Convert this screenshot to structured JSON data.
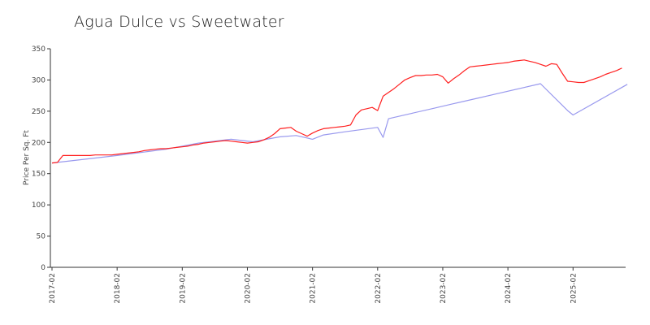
{
  "chart_data": {
    "type": "line",
    "title": "Agua Dulce vs Sweetwater",
    "xlabel": "",
    "ylabel": "Price Per Sq. Ft",
    "ylim": [
      0,
      350
    ],
    "yticks": [
      0,
      50,
      100,
      150,
      200,
      250,
      300,
      350
    ],
    "xtick_labels": [
      "2017-02",
      "2018-02",
      "2019-02",
      "2020-02",
      "2021-02",
      "2022-02",
      "2023-02",
      "2024-02",
      "2025-02"
    ],
    "x_range_months": [
      0,
      106
    ],
    "colors": {
      "red": "#ff2020",
      "blue": "#9999ee"
    },
    "series": [
      {
        "name": "Agua Dulce",
        "color": "red",
        "points": [
          [
            0,
            167
          ],
          [
            1,
            168
          ],
          [
            2,
            179
          ],
          [
            3,
            179
          ],
          [
            4,
            179
          ],
          [
            5,
            179
          ],
          [
            6,
            179
          ],
          [
            7,
            179
          ],
          [
            8,
            180
          ],
          [
            9,
            180
          ],
          [
            10,
            180
          ],
          [
            11,
            180
          ],
          [
            12,
            181
          ],
          [
            13,
            182
          ],
          [
            14,
            183
          ],
          [
            15,
            184
          ],
          [
            16,
            185
          ],
          [
            17,
            187
          ],
          [
            18,
            188
          ],
          [
            19,
            189
          ],
          [
            20,
            190
          ],
          [
            21,
            190
          ],
          [
            22,
            191
          ],
          [
            23,
            192
          ],
          [
            24,
            193
          ],
          [
            25,
            194
          ],
          [
            26,
            196
          ],
          [
            27,
            197
          ],
          [
            28,
            199
          ],
          [
            29,
            200
          ],
          [
            30,
            201
          ],
          [
            31,
            202
          ],
          [
            32,
            203
          ],
          [
            33,
            202
          ],
          [
            34,
            201
          ],
          [
            35,
            200
          ],
          [
            36,
            199
          ],
          [
            37,
            200
          ],
          [
            38,
            201
          ],
          [
            39,
            204
          ],
          [
            40,
            208
          ],
          [
            41,
            214
          ],
          [
            42,
            222
          ],
          [
            43,
            223
          ],
          [
            44,
            224
          ],
          [
            45,
            218
          ],
          [
            46,
            214
          ],
          [
            47,
            210
          ],
          [
            48,
            215
          ],
          [
            49,
            219
          ],
          [
            50,
            222
          ],
          [
            51,
            223
          ],
          [
            52,
            224
          ],
          [
            53,
            225
          ],
          [
            54,
            226
          ],
          [
            55,
            228
          ],
          [
            56,
            244
          ],
          [
            57,
            252
          ],
          [
            58,
            254
          ],
          [
            59,
            256
          ],
          [
            60,
            251
          ],
          [
            61,
            274
          ],
          [
            62,
            280
          ],
          [
            63,
            286
          ],
          [
            64,
            293
          ],
          [
            65,
            300
          ],
          [
            66,
            304
          ],
          [
            67,
            307
          ],
          [
            68,
            307
          ],
          [
            69,
            308
          ],
          [
            70,
            308
          ],
          [
            71,
            309
          ],
          [
            72,
            305
          ],
          [
            73,
            295
          ],
          [
            74,
            302
          ],
          [
            75,
            308
          ],
          [
            76,
            315
          ],
          [
            77,
            321
          ],
          [
            78,
            322
          ],
          [
            79,
            323
          ],
          [
            80,
            324
          ],
          [
            81,
            325
          ],
          [
            82,
            326
          ],
          [
            83,
            327
          ],
          [
            84,
            328
          ],
          [
            85,
            330
          ],
          [
            86,
            331
          ],
          [
            87,
            332
          ],
          [
            88,
            330
          ],
          [
            89,
            328
          ],
          [
            90,
            325
          ],
          [
            91,
            322
          ],
          [
            92,
            326
          ],
          [
            93,
            325
          ],
          [
            94,
            311
          ],
          [
            95,
            298
          ],
          [
            96,
            297
          ],
          [
            97,
            296
          ],
          [
            98,
            296
          ],
          [
            99,
            299
          ],
          [
            100,
            302
          ],
          [
            101,
            305
          ],
          [
            102,
            309
          ],
          [
            103,
            312
          ],
          [
            104,
            315
          ],
          [
            105,
            319
          ]
        ]
      },
      {
        "name": "Sweetwater",
        "color": "blue",
        "points": [
          [
            0,
            167
          ],
          [
            12,
            179
          ],
          [
            21,
            189
          ],
          [
            27,
            199
          ],
          [
            33,
            205
          ],
          [
            37,
            201
          ],
          [
            42,
            209
          ],
          [
            45,
            211
          ],
          [
            48,
            205
          ],
          [
            50,
            212
          ],
          [
            54,
            217
          ],
          [
            60,
            224
          ],
          [
            61,
            208
          ],
          [
            62,
            238
          ],
          [
            66,
            246
          ],
          [
            70,
            254
          ],
          [
            74,
            262
          ],
          [
            78,
            270
          ],
          [
            82,
            278
          ],
          [
            86,
            286
          ],
          [
            90,
            294
          ],
          [
            95,
            251
          ],
          [
            96,
            244
          ],
          [
            106,
            293
          ]
        ]
      }
    ]
  }
}
